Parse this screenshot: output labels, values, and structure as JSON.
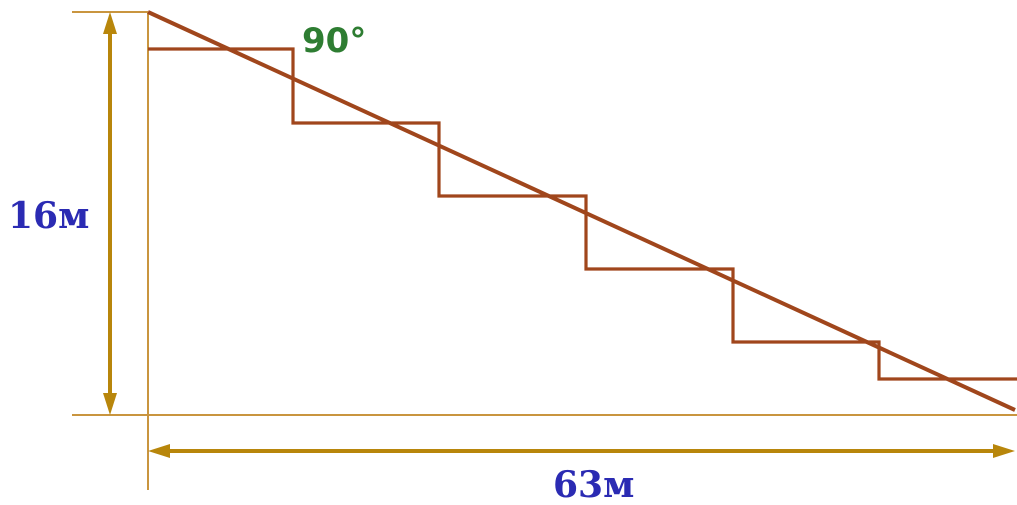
{
  "labels": {
    "height": "16м",
    "width": "63м",
    "angle": "90°"
  },
  "colors": {
    "guide": "#c9953f",
    "dimension": "#b8860b",
    "stairs": "#a0461c",
    "dimension_text": "#2b2bb3",
    "angle_text": "#2e7d32"
  }
}
